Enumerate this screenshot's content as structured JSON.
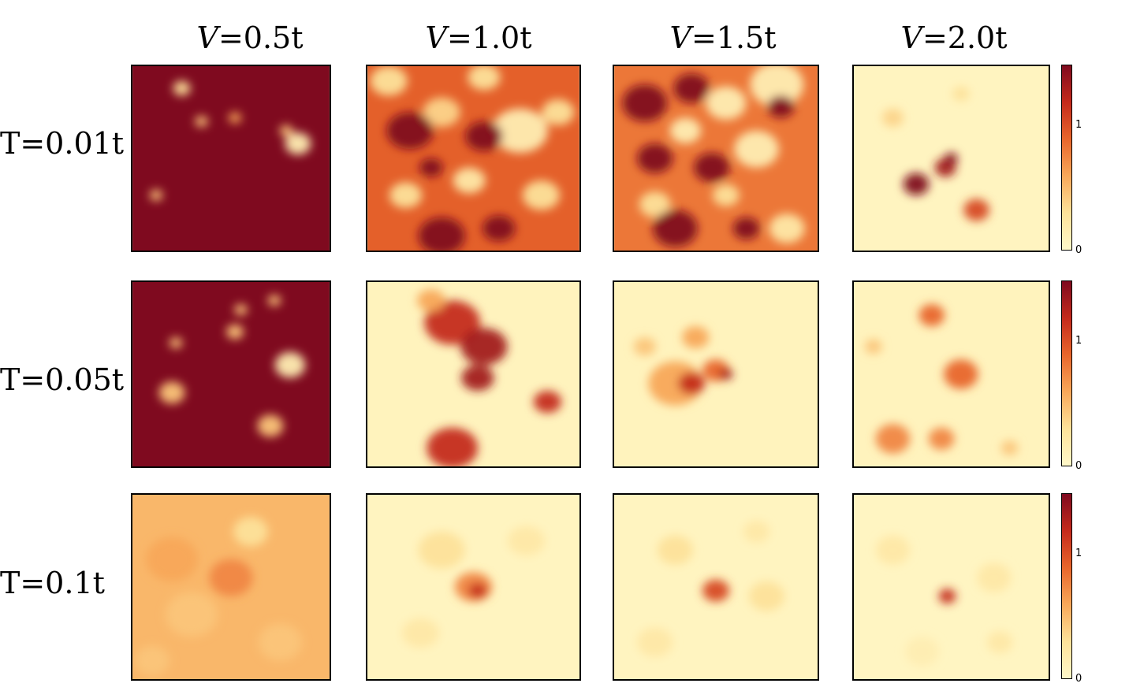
{
  "chart_data": {
    "type": "heatmap",
    "columns": [
      {
        "var": "V",
        "eq": "=0.5t"
      },
      {
        "var": "V",
        "eq": "=1.0t"
      },
      {
        "var": "V",
        "eq": "=1.5t"
      },
      {
        "var": "V",
        "eq": "=2.0t"
      }
    ],
    "rows": [
      "T=0.01t",
      "T=0.05t",
      "T=0.1t"
    ],
    "colorbar": {
      "ticks": [
        "1",
        "0"
      ],
      "colors": [
        "#fff8c9",
        "#fde29a",
        "#f8a85a",
        "#e8662c",
        "#c42a1c",
        "#7f0a1f"
      ]
    },
    "panels": [
      {
        "row": 0,
        "col": 0,
        "base": 1.0,
        "blobs": [
          [
            0.25,
            0.12,
            0.04,
            0.2
          ],
          [
            0.35,
            0.3,
            0.03,
            0.3
          ],
          [
            0.84,
            0.42,
            0.06,
            0.1
          ],
          [
            0.52,
            0.28,
            0.03,
            0.4
          ],
          [
            0.12,
            0.7,
            0.03,
            0.3
          ],
          [
            0.78,
            0.35,
            0.03,
            0.3
          ]
        ]
      },
      {
        "row": 0,
        "col": 1,
        "base": 0.62,
        "blobs": [
          [
            0.1,
            0.08,
            0.08,
            0.2
          ],
          [
            0.35,
            0.25,
            0.08,
            0.25
          ],
          [
            0.55,
            0.06,
            0.07,
            0.2
          ],
          [
            0.72,
            0.35,
            0.12,
            0.1
          ],
          [
            0.82,
            0.7,
            0.08,
            0.2
          ],
          [
            0.18,
            0.7,
            0.07,
            0.2
          ],
          [
            0.48,
            0.62,
            0.07,
            0.15
          ],
          [
            0.9,
            0.25,
            0.07,
            0.2
          ],
          [
            0.3,
            0.55,
            0.05,
            1.0
          ],
          [
            0.2,
            0.35,
            0.1,
            1.0
          ],
          [
            0.55,
            0.38,
            0.08,
            1.0
          ],
          [
            0.35,
            0.92,
            0.1,
            1.0
          ],
          [
            0.62,
            0.88,
            0.07,
            1.0
          ]
        ]
      },
      {
        "row": 0,
        "col": 2,
        "base": 0.55,
        "blobs": [
          [
            0.8,
            0.1,
            0.12,
            0.1
          ],
          [
            0.55,
            0.2,
            0.09,
            0.1
          ],
          [
            0.7,
            0.45,
            0.1,
            0.1
          ],
          [
            0.35,
            0.35,
            0.07,
            0.1
          ],
          [
            0.2,
            0.75,
            0.07,
            0.2
          ],
          [
            0.55,
            0.7,
            0.06,
            0.2
          ],
          [
            0.85,
            0.88,
            0.08,
            0.15
          ],
          [
            0.15,
            0.2,
            0.1,
            1.0
          ],
          [
            0.38,
            0.12,
            0.08,
            1.0
          ],
          [
            0.82,
            0.22,
            0.06,
            1.0
          ],
          [
            0.2,
            0.5,
            0.08,
            1.0
          ],
          [
            0.48,
            0.55,
            0.08,
            1.0
          ],
          [
            0.3,
            0.88,
            0.1,
            1.0
          ],
          [
            0.65,
            0.88,
            0.06,
            1.0
          ]
        ]
      },
      {
        "row": 0,
        "col": 3,
        "base": 0.04,
        "blobs": [
          [
            0.32,
            0.64,
            0.06,
            1.0
          ],
          [
            0.47,
            0.55,
            0.05,
            0.9
          ],
          [
            0.5,
            0.5,
            0.03,
            1.0
          ],
          [
            0.63,
            0.78,
            0.06,
            0.7
          ],
          [
            0.2,
            0.28,
            0.05,
            0.25
          ],
          [
            0.55,
            0.15,
            0.04,
            0.2
          ]
        ]
      },
      {
        "row": 1,
        "col": 0,
        "base": 1.0,
        "blobs": [
          [
            0.8,
            0.45,
            0.07,
            0.1
          ],
          [
            0.52,
            0.27,
            0.04,
            0.3
          ],
          [
            0.2,
            0.6,
            0.06,
            0.3
          ],
          [
            0.7,
            0.78,
            0.06,
            0.3
          ],
          [
            0.22,
            0.33,
            0.03,
            0.3
          ],
          [
            0.55,
            0.15,
            0.03,
            0.3
          ],
          [
            0.72,
            0.1,
            0.03,
            0.3
          ]
        ]
      },
      {
        "row": 1,
        "col": 1,
        "base": 0.05,
        "blobs": [
          [
            0.4,
            0.22,
            0.12,
            0.8
          ],
          [
            0.55,
            0.35,
            0.1,
            0.9
          ],
          [
            0.52,
            0.52,
            0.07,
            0.9
          ],
          [
            0.4,
            0.9,
            0.11,
            0.8
          ],
          [
            0.85,
            0.65,
            0.06,
            0.8
          ],
          [
            0.3,
            0.1,
            0.06,
            0.4
          ]
        ]
      },
      {
        "row": 1,
        "col": 2,
        "base": 0.05,
        "blobs": [
          [
            0.3,
            0.55,
            0.12,
            0.4
          ],
          [
            0.38,
            0.55,
            0.06,
            0.8
          ],
          [
            0.5,
            0.48,
            0.06,
            0.6
          ],
          [
            0.55,
            0.5,
            0.03,
            0.9
          ],
          [
            0.4,
            0.3,
            0.06,
            0.4
          ],
          [
            0.15,
            0.35,
            0.05,
            0.3
          ]
        ]
      },
      {
        "row": 1,
        "col": 3,
        "base": 0.05,
        "blobs": [
          [
            0.4,
            0.18,
            0.06,
            0.6
          ],
          [
            0.55,
            0.5,
            0.08,
            0.6
          ],
          [
            0.2,
            0.85,
            0.08,
            0.5
          ],
          [
            0.45,
            0.85,
            0.06,
            0.5
          ],
          [
            0.1,
            0.35,
            0.04,
            0.3
          ],
          [
            0.8,
            0.9,
            0.04,
            0.3
          ]
        ]
      },
      {
        "row": 2,
        "col": 0,
        "base": 0.35,
        "blobs": [
          [
            0.2,
            0.35,
            0.12,
            0.4
          ],
          [
            0.5,
            0.45,
            0.1,
            0.5
          ],
          [
            0.3,
            0.65,
            0.12,
            0.3
          ],
          [
            0.75,
            0.8,
            0.1,
            0.3
          ],
          [
            0.1,
            0.9,
            0.08,
            0.3
          ],
          [
            0.6,
            0.2,
            0.08,
            0.2
          ]
        ]
      },
      {
        "row": 2,
        "col": 1,
        "base": 0.04,
        "blobs": [
          [
            0.5,
            0.5,
            0.08,
            0.5
          ],
          [
            0.52,
            0.52,
            0.04,
            0.8
          ],
          [
            0.35,
            0.3,
            0.1,
            0.2
          ],
          [
            0.75,
            0.25,
            0.08,
            0.15
          ],
          [
            0.25,
            0.75,
            0.08,
            0.15
          ]
        ]
      },
      {
        "row": 2,
        "col": 2,
        "base": 0.04,
        "blobs": [
          [
            0.5,
            0.52,
            0.06,
            0.7
          ],
          [
            0.3,
            0.3,
            0.08,
            0.2
          ],
          [
            0.75,
            0.55,
            0.08,
            0.2
          ],
          [
            0.2,
            0.8,
            0.08,
            0.15
          ],
          [
            0.7,
            0.2,
            0.06,
            0.15
          ]
        ]
      },
      {
        "row": 2,
        "col": 3,
        "base": 0.03,
        "blobs": [
          [
            0.48,
            0.55,
            0.04,
            0.8
          ],
          [
            0.2,
            0.3,
            0.08,
            0.15
          ],
          [
            0.72,
            0.45,
            0.08,
            0.15
          ],
          [
            0.35,
            0.85,
            0.08,
            0.1
          ],
          [
            0.75,
            0.8,
            0.06,
            0.15
          ]
        ]
      }
    ]
  }
}
